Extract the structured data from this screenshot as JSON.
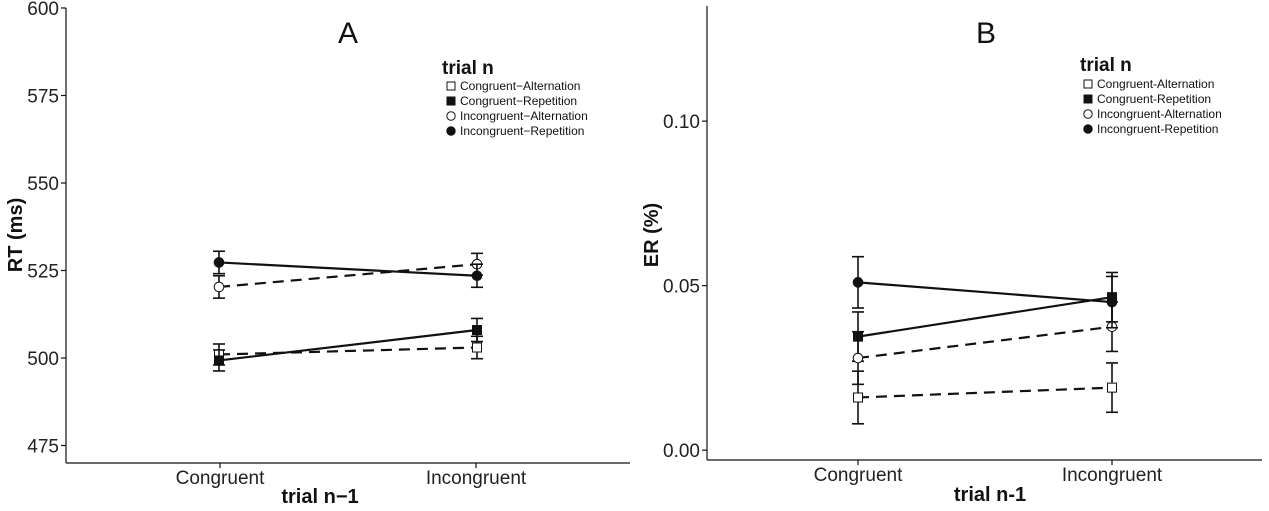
{
  "chart_data": [
    {
      "type": "line",
      "panel": "A",
      "title": "A",
      "xlabel": "trial n−1",
      "ylabel": "RT (ms)",
      "categories": [
        "Congruent",
        "Incongruent"
      ],
      "ylim": [
        470,
        600
      ],
      "yticks": [
        475,
        500,
        525,
        550,
        575,
        600
      ],
      "ytick_labels": [
        "475",
        "500",
        "525",
        "550",
        "575",
        "600"
      ],
      "legend_title": "trial n",
      "legend_labels": [
        "Congruent−Alternation",
        "Congruent−Repetition",
        "Incongruent−Alternation",
        "Incongruent−Repetition"
      ],
      "series": [
        {
          "name": "Congruent-Alternation",
          "marker": "open-square",
          "dashed": true,
          "values": [
            501,
            503
          ],
          "err": [
            3.0,
            3.2
          ]
        },
        {
          "name": "Congruent-Repetition",
          "marker": "filled-square",
          "dashed": false,
          "values": [
            499.3,
            508
          ],
          "err": [
            3.0,
            3.3
          ]
        },
        {
          "name": "Incongruent-Alternation",
          "marker": "open-circle",
          "dashed": true,
          "values": [
            520.3,
            526.8
          ],
          "err": [
            3.2,
            3.1
          ]
        },
        {
          "name": "Incongruent-Repetition",
          "marker": "filled-circle",
          "dashed": false,
          "values": [
            527.3,
            523.5
          ],
          "err": [
            3.2,
            3.3
          ]
        }
      ]
    },
    {
      "type": "line",
      "panel": "B",
      "title": "B",
      "xlabel": "trial n-1",
      "ylabel": "ER (%)",
      "categories": [
        "Congruent",
        "Incongruent"
      ],
      "ylim": [
        -0.003,
        0.135
      ],
      "yticks": [
        0.0,
        0.05,
        0.1
      ],
      "ytick_labels": [
        "0.00",
        "0.05",
        "0.10"
      ],
      "legend_title": "trial n",
      "legend_labels": [
        "Congruent-Alternation",
        "Congruent-Repetition",
        "Incongruent-Alternation",
        "Incongruent-Repetition"
      ],
      "series": [
        {
          "name": "Congruent-Alternation",
          "marker": "open-square",
          "dashed": true,
          "values": [
            0.016,
            0.019
          ],
          "err": [
            0.008,
            0.0075
          ]
        },
        {
          "name": "Congruent-Repetition",
          "marker": "filled-square",
          "dashed": false,
          "values": [
            0.0345,
            0.0465
          ],
          "err": [
            0.0075,
            0.0075
          ]
        },
        {
          "name": "Incongruent-Alternation",
          "marker": "open-circle",
          "dashed": true,
          "values": [
            0.028,
            0.0375
          ],
          "err": [
            0.008,
            0.0075
          ]
        },
        {
          "name": "Incongruent-Repetition",
          "marker": "filled-circle",
          "dashed": false,
          "values": [
            0.051,
            0.045
          ],
          "err": [
            0.0078,
            0.0078
          ]
        }
      ]
    }
  ]
}
